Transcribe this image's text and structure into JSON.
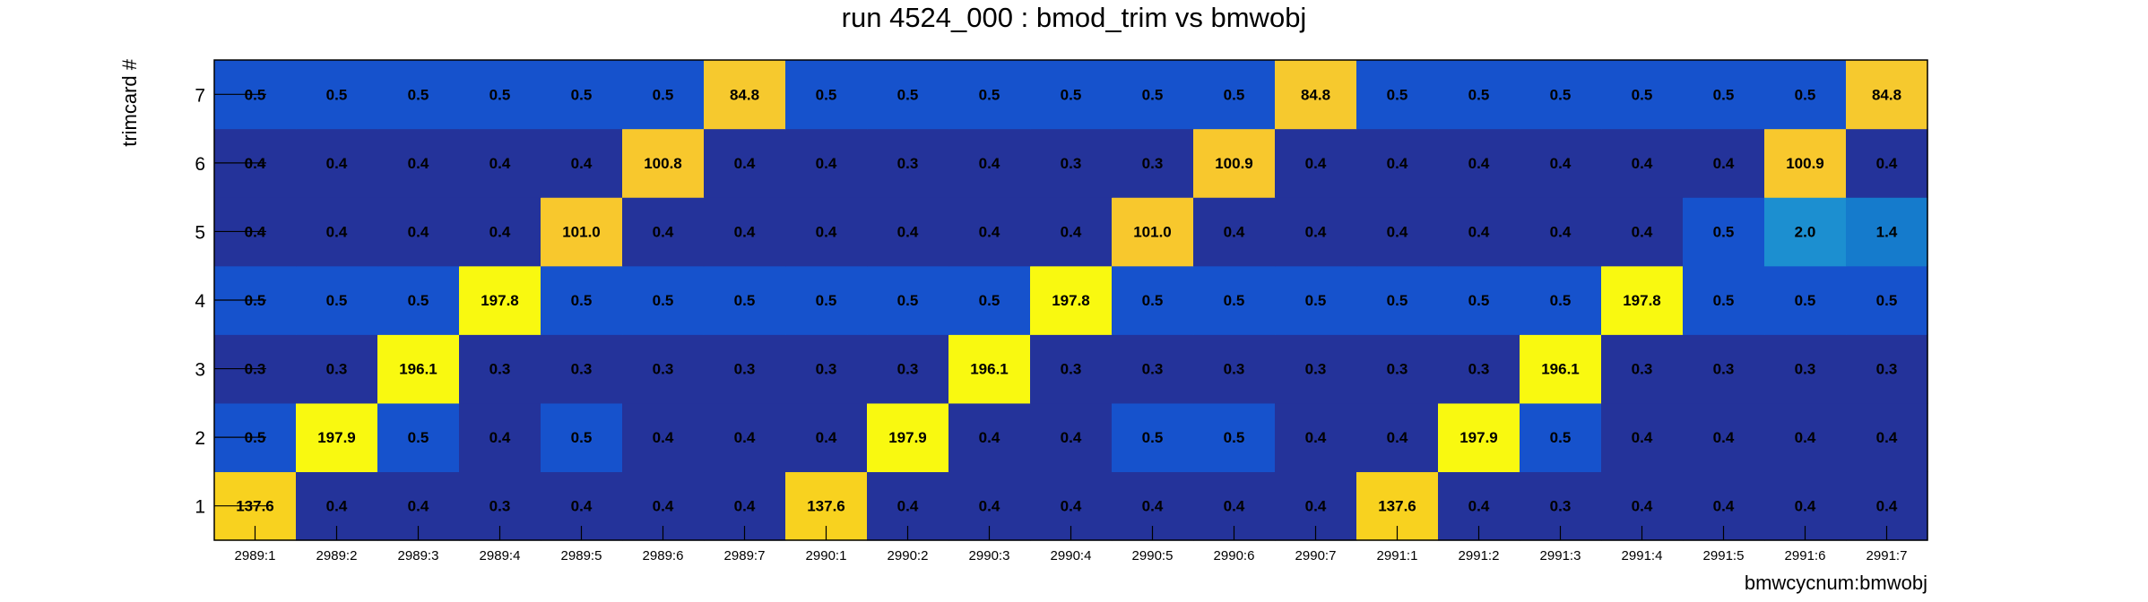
{
  "chart_data": {
    "type": "heatmap",
    "title": "run 4524_000 : bmod_trim vs bmwobj",
    "xlabel": "bmwcycnum:bmwobj",
    "ylabel": "trimcard #",
    "x_categories": [
      "2989:1",
      "2989:2",
      "2989:3",
      "2989:4",
      "2989:5",
      "2989:6",
      "2989:7",
      "2990:1",
      "2990:2",
      "2990:3",
      "2990:4",
      "2990:5",
      "2990:6",
      "2990:7",
      "2991:1",
      "2991:2",
      "2991:3",
      "2991:4",
      "2991:5",
      "2991:6",
      "2991:7"
    ],
    "y_categories": [
      "1",
      "2",
      "3",
      "4",
      "5",
      "6",
      "7"
    ],
    "values": [
      [
        137.6,
        0.4,
        0.4,
        0.3,
        0.4,
        0.4,
        0.4,
        137.6,
        0.4,
        0.4,
        0.4,
        0.4,
        0.4,
        0.4,
        137.6,
        0.4,
        0.3,
        0.4,
        0.4,
        0.4,
        0.4
      ],
      [
        0.5,
        197.9,
        0.5,
        0.4,
        0.5,
        0.4,
        0.4,
        0.4,
        197.9,
        0.4,
        0.4,
        0.5,
        0.5,
        0.4,
        0.4,
        197.9,
        0.5,
        0.4,
        0.4,
        0.4,
        0.4
      ],
      [
        0.3,
        0.3,
        196.1,
        0.3,
        0.3,
        0.3,
        0.3,
        0.3,
        0.3,
        196.1,
        0.3,
        0.3,
        0.3,
        0.3,
        0.3,
        0.3,
        196.1,
        0.3,
        0.3,
        0.3,
        0.3
      ],
      [
        0.5,
        0.5,
        0.5,
        197.8,
        0.5,
        0.5,
        0.5,
        0.5,
        0.5,
        0.5,
        197.8,
        0.5,
        0.5,
        0.5,
        0.5,
        0.5,
        0.5,
        197.8,
        0.5,
        0.5,
        0.5
      ],
      [
        0.4,
        0.4,
        0.4,
        0.4,
        101.0,
        0.4,
        0.4,
        0.4,
        0.4,
        0.4,
        0.4,
        101.0,
        0.4,
        0.4,
        0.4,
        0.4,
        0.4,
        0.4,
        0.5,
        2.0,
        1.4
      ],
      [
        0.4,
        0.4,
        0.4,
        0.4,
        0.4,
        100.8,
        0.4,
        0.4,
        0.3,
        0.4,
        0.3,
        0.3,
        100.9,
        0.4,
        0.4,
        0.4,
        0.4,
        0.4,
        0.4,
        100.9,
        0.4
      ],
      [
        0.5,
        0.5,
        0.5,
        0.5,
        0.5,
        0.5,
        84.8,
        0.5,
        0.5,
        0.5,
        0.5,
        0.5,
        0.5,
        84.8,
        0.5,
        0.5,
        0.5,
        0.5,
        0.5,
        0.5,
        84.8
      ]
    ],
    "colors": {
      "0.3": "#24339a",
      "0.4": "#24339a",
      "0.5": "#1652cc",
      "1.4": "#157bcc",
      "2.0": "#1c8fd0",
      "84.8": "#f6c92e",
      "100.8": "#f8c82d",
      "100.9": "#f8c82d",
      "101.0": "#f8c82d",
      "137.6": "#f8d21f",
      "196.1": "#f9f910",
      "197.8": "#f9f910",
      "197.9": "#f9f910"
    },
    "grid": false,
    "legend": "none"
  }
}
